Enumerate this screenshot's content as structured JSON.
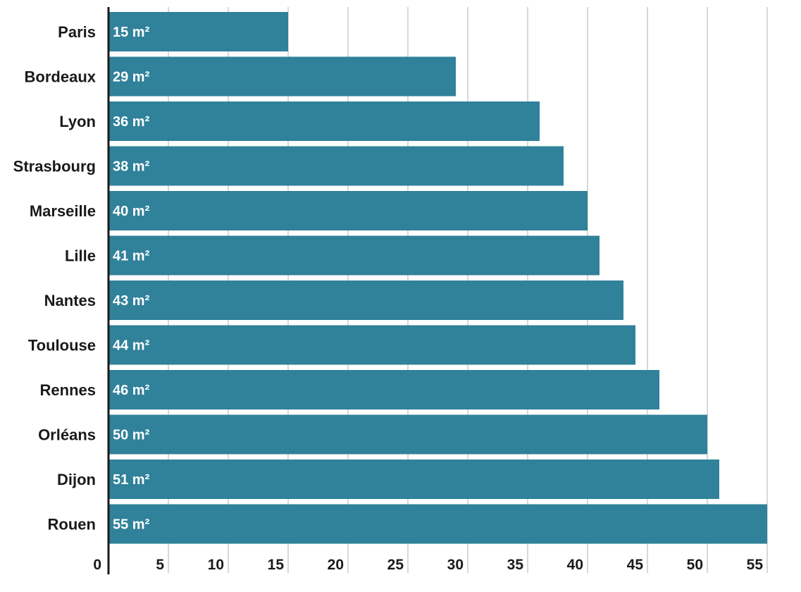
{
  "chart_data": {
    "type": "bar",
    "orientation": "horizontal",
    "categories": [
      "Paris",
      "Bordeaux",
      "Lyon",
      "Strasbourg",
      "Marseille",
      "Lille",
      "Nantes",
      "Toulouse",
      "Rennes",
      "Orléans",
      "Dijon",
      "Rouen"
    ],
    "values": [
      15,
      29,
      36,
      38,
      40,
      41,
      43,
      44,
      46,
      50,
      51,
      55
    ],
    "data_labels": [
      "15 m²",
      "29 m²",
      "36 m²",
      "38 m²",
      "40 m²",
      "41 m²",
      "43 m²",
      "44 m²",
      "46 m²",
      "50 m²",
      "51 m²",
      "55 m²"
    ],
    "x_ticks": [
      0,
      5,
      10,
      15,
      20,
      25,
      30,
      35,
      40,
      45,
      50,
      55
    ],
    "xlim": [
      0,
      55
    ],
    "title": "",
    "xlabel": "",
    "ylabel": "",
    "grid": "vertical",
    "legend": "none",
    "colors": {
      "bar": "#30819a",
      "grid": "#cccccc",
      "axis": "#1a1a1a"
    }
  }
}
